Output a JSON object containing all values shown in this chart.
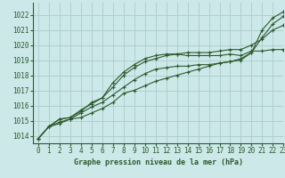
{
  "title": "Graphe pression niveau de la mer (hPa)",
  "background_color": "#cce8e8",
  "grid_color": "#aacccc",
  "line_color": "#2d5a2d",
  "xlim": [
    -0.5,
    23
  ],
  "ylim": [
    1013.5,
    1022.8
  ],
  "yticks": [
    1014,
    1015,
    1016,
    1017,
    1018,
    1019,
    1020,
    1021,
    1022
  ],
  "xticks": [
    0,
    1,
    2,
    3,
    4,
    5,
    6,
    7,
    8,
    9,
    10,
    11,
    12,
    13,
    14,
    15,
    16,
    17,
    18,
    19,
    20,
    21,
    22,
    23
  ],
  "series": [
    [
      1013.8,
      1014.6,
      1014.8,
      1015.1,
      1015.2,
      1015.5,
      1015.8,
      1016.2,
      1016.8,
      1017.0,
      1017.3,
      1017.6,
      1017.8,
      1018.0,
      1018.2,
      1018.4,
      1018.6,
      1018.8,
      1018.9,
      1019.1,
      1019.5,
      1021.0,
      1021.8,
      1022.2
    ],
    [
      1013.8,
      1014.6,
      1015.1,
      1015.2,
      1015.6,
      1016.2,
      1016.5,
      1017.5,
      1018.2,
      1018.7,
      1019.1,
      1019.3,
      1019.4,
      1019.4,
      1019.3,
      1019.3,
      1019.3,
      1019.3,
      1019.4,
      1019.3,
      1019.6,
      1019.6,
      1019.7,
      1019.7
    ],
    [
      1013.8,
      1014.6,
      1014.9,
      1015.1,
      1015.5,
      1015.9,
      1016.2,
      1016.7,
      1017.2,
      1017.7,
      1018.1,
      1018.4,
      1018.5,
      1018.6,
      1018.6,
      1018.7,
      1018.7,
      1018.8,
      1018.9,
      1019.0,
      1019.5,
      1020.5,
      1021.4,
      1021.9
    ],
    [
      1013.8,
      1014.6,
      1015.1,
      1015.2,
      1015.7,
      1016.1,
      1016.5,
      1017.2,
      1018.0,
      1018.5,
      1018.9,
      1019.1,
      1019.3,
      1019.4,
      1019.5,
      1019.5,
      1019.5,
      1019.6,
      1019.7,
      1019.7,
      1020.0,
      1020.4,
      1021.0,
      1021.3
    ]
  ]
}
